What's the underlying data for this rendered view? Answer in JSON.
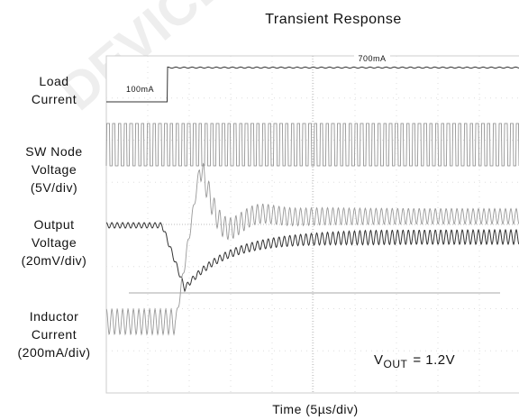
{
  "title": "Transient Response",
  "watermark": "DEVICE NO",
  "labels": [
    {
      "lines": [
        "Load",
        "Current"
      ]
    },
    {
      "lines": [
        "SW Node",
        "Voltage",
        "(5V/div)"
      ]
    },
    {
      "lines": [
        "Output",
        "Voltage",
        "(20mV/div)"
      ]
    },
    {
      "lines": [
        "Inductor",
        "Current",
        "(200mA/div)"
      ]
    }
  ],
  "annotations": [
    "100mA",
    "700mA"
  ],
  "vout": {
    "symbol": "V",
    "subscript": "OUT",
    "text": "= 1.2V"
  },
  "x_label": "Time (5µs/div)"
}
